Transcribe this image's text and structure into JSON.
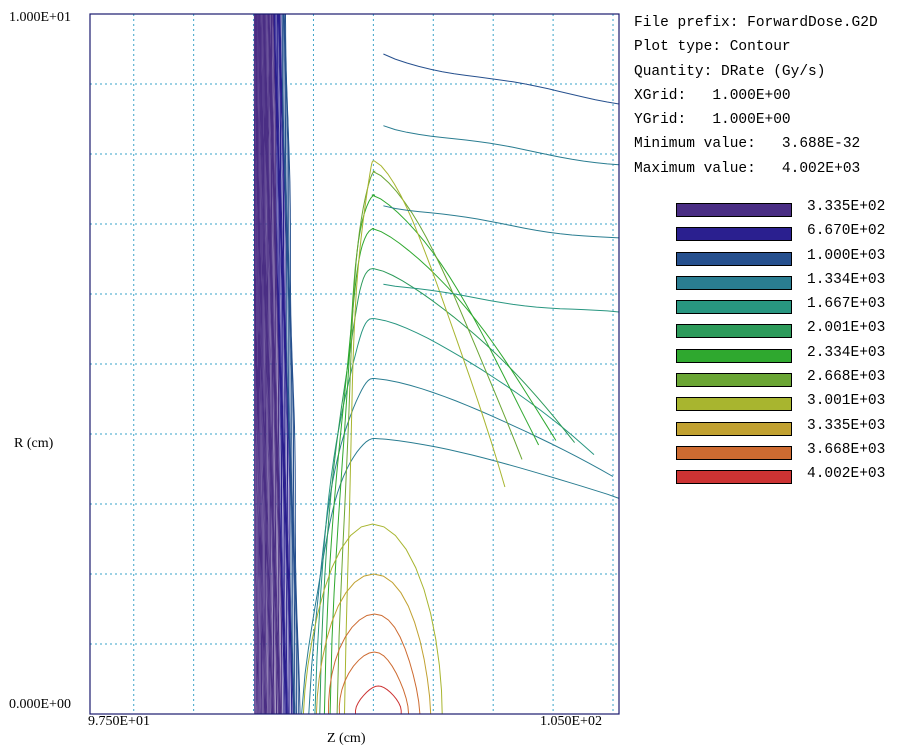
{
  "chart_data": {
    "type": "contour",
    "title": "",
    "xlabel": "Z (cm)",
    "ylabel": "R (cm)",
    "xlim": [
      96.77,
      105.6
    ],
    "ylim": [
      0.0,
      10.0
    ],
    "x_tick_labels": [
      {
        "value": 97.5,
        "label": "9.750E+01"
      },
      {
        "value": 105.0,
        "label": "1.050E+02"
      }
    ],
    "y_tick_labels": [
      {
        "value": 10.0,
        "label": "1.000E+01"
      },
      {
        "value": 0.0,
        "label": "0.000E+00"
      }
    ],
    "grid": true,
    "grid_spacing": 1.0,
    "grid_origin_x": 97.5,
    "material_edge_z": 99.5,
    "peak_z": 101.5,
    "levels": [
      {
        "value": 333.5,
        "label": "3.335E+02",
        "color": "#4a2e84"
      },
      {
        "value": 667.0,
        "label": "6.670E+02",
        "color": "#2a1f8f"
      },
      {
        "value": 1000.0,
        "label": "1.000E+03",
        "color": "#26508e"
      },
      {
        "value": 1334.0,
        "label": "1.334E+03",
        "color": "#2a7d91"
      },
      {
        "value": 1667.0,
        "label": "1.667E+03",
        "color": "#289680"
      },
      {
        "value": 2001.0,
        "label": "2.001E+03",
        "color": "#2c9a5a"
      },
      {
        "value": 2334.0,
        "label": "2.334E+03",
        "color": "#2fa82f"
      },
      {
        "value": 2668.0,
        "label": "2.668E+03",
        "color": "#6aa534"
      },
      {
        "value": 3001.0,
        "label": "3.001E+03",
        "color": "#a8b52f"
      },
      {
        "value": 3335.0,
        "label": "3.335E+03",
        "color": "#c1a131"
      },
      {
        "value": 3668.0,
        "label": "3.668E+03",
        "color": "#cd6b31"
      },
      {
        "value": 4002.0,
        "label": "4.002E+03",
        "color": "#cc3333"
      }
    ],
    "info": {
      "file_prefix": "File prefix: ForwardDose.G2D",
      "plot_type": "Plot type: Contour",
      "quantity": "Quantity: DRate (Gy/s)",
      "xgrid": "XGrid:   1.000E+00",
      "ygrid": "YGrid:   1.000E+00",
      "minimum": "Minimum value:   3.688E-32",
      "maximum": "Maximum value:   4.002E+03"
    }
  }
}
